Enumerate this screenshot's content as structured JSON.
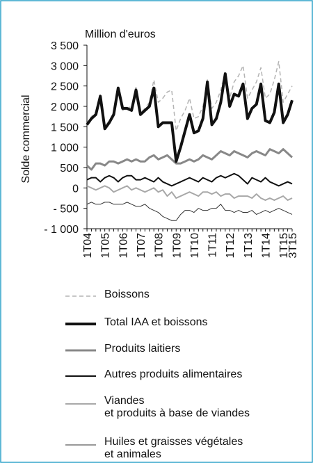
{
  "chart_data": {
    "type": "line",
    "ylabel": "Solde commercial",
    "unit_label": "Million d'euros",
    "categories": [
      "1T04",
      null,
      null,
      null,
      "1T05",
      null,
      null,
      null,
      "1T06",
      null,
      null,
      null,
      "1T07",
      null,
      null,
      null,
      "1T08",
      null,
      null,
      null,
      "1T09",
      null,
      null,
      null,
      "1T10",
      null,
      null,
      null,
      "1T11",
      null,
      null,
      null,
      "1T12",
      null,
      null,
      null,
      "1T13",
      null,
      null,
      null,
      "1T14",
      null,
      null,
      null,
      "1T15",
      null,
      "3T15"
    ],
    "ylim": [
      -1000,
      3500
    ],
    "yticks": [
      {
        "value": -1000,
        "label": "- 1 000"
      },
      {
        "value": -500,
        "label": "- 500"
      },
      0,
      500,
      {
        "value": 1000,
        "label": "1 000"
      },
      {
        "value": 1500,
        "label": "1 500"
      },
      {
        "value": 2000,
        "label": "2 000"
      },
      {
        "value": 2500,
        "label": "2 500"
      },
      {
        "value": 3000,
        "label": "3 000"
      },
      {
        "value": 3500,
        "label": "3 500"
      }
    ],
    "series": [
      {
        "name": "Boissons",
        "color": "#b4b4b4",
        "style": "dashed",
        "width": 1.5,
        "values": [
          1550,
          1750,
          1850,
          2300,
          1500,
          1650,
          1850,
          2400,
          1900,
          1950,
          2000,
          2500,
          1850,
          1950,
          2100,
          2650,
          2100,
          2200,
          2350,
          2400,
          1400,
          1700,
          1900,
          2200,
          1700,
          1750,
          2000,
          2650,
          1950,
          2100,
          2400,
          2850,
          2200,
          2600,
          2750,
          3000,
          2200,
          2400,
          2600,
          2950,
          2200,
          2300,
          2650,
          3100,
          2100,
          2300,
          2500
        ]
      },
      {
        "name": "Total IAA et boissons",
        "color": "#111111",
        "style": "solid",
        "width": 4,
        "values": [
          1550,
          1700,
          1800,
          2250,
          1450,
          1600,
          1800,
          2450,
          1950,
          1950,
          1900,
          2400,
          1800,
          1900,
          2000,
          2450,
          1500,
          1600,
          1600,
          1600,
          650,
          1000,
          1400,
          1800,
          1350,
          1400,
          1700,
          2600,
          1550,
          1700,
          2100,
          2800,
          2000,
          2300,
          2250,
          2550,
          1700,
          1950,
          2050,
          2550,
          1650,
          1600,
          1850,
          2550,
          1600,
          1800,
          2150
        ]
      },
      {
        "name": "Produits laitiers",
        "color": "#888888",
        "style": "solid",
        "width": 3,
        "values": [
          550,
          450,
          600,
          600,
          550,
          650,
          650,
          600,
          650,
          700,
          650,
          700,
          650,
          650,
          750,
          800,
          700,
          750,
          800,
          700,
          600,
          600,
          650,
          700,
          650,
          700,
          800,
          750,
          700,
          800,
          900,
          850,
          800,
          900,
          850,
          800,
          750,
          850,
          900,
          850,
          800,
          950,
          900,
          850,
          950,
          850,
          750
        ]
      },
      {
        "name": "Autres produits alimentaires",
        "color": "#111111",
        "style": "solid",
        "width": 2,
        "values": [
          200,
          250,
          250,
          150,
          250,
          300,
          250,
          150,
          250,
          300,
          300,
          200,
          200,
          250,
          200,
          150,
          250,
          150,
          100,
          50,
          100,
          150,
          200,
          250,
          200,
          150,
          250,
          200,
          150,
          250,
          300,
          250,
          300,
          350,
          300,
          200,
          100,
          250,
          200,
          150,
          250,
          150,
          100,
          50,
          100,
          150,
          100
        ]
      },
      {
        "name": "Viandes\net produits à base de viandes",
        "color": "#a8a8a8",
        "style": "solid",
        "width": 2,
        "values": [
          50,
          0,
          -50,
          0,
          50,
          0,
          -100,
          -50,
          0,
          50,
          -50,
          0,
          -50,
          -100,
          -50,
          0,
          -100,
          -50,
          -200,
          -100,
          -250,
          -200,
          -150,
          -100,
          -150,
          -200,
          -100,
          -100,
          -150,
          -100,
          -200,
          -150,
          -150,
          -250,
          -200,
          -200,
          -200,
          -250,
          -150,
          -250,
          -300,
          -250,
          -300,
          -250,
          -200,
          -300,
          -250
        ]
      },
      {
        "name": "Huiles et graisses végétales\net animales",
        "color": "#333333",
        "style": "solid",
        "width": 1,
        "values": [
          -400,
          -350,
          -400,
          -400,
          -350,
          -350,
          -400,
          -400,
          -400,
          -350,
          -400,
          -450,
          -450,
          -400,
          -500,
          -550,
          -600,
          -700,
          -750,
          -800,
          -800,
          -650,
          -550,
          -550,
          -600,
          -500,
          -550,
          -550,
          -500,
          -500,
          -400,
          -550,
          -550,
          -600,
          -550,
          -600,
          -600,
          -550,
          -650,
          -600,
          -550,
          -600,
          -550,
          -500,
          -550,
          -600,
          -650
        ]
      }
    ]
  }
}
